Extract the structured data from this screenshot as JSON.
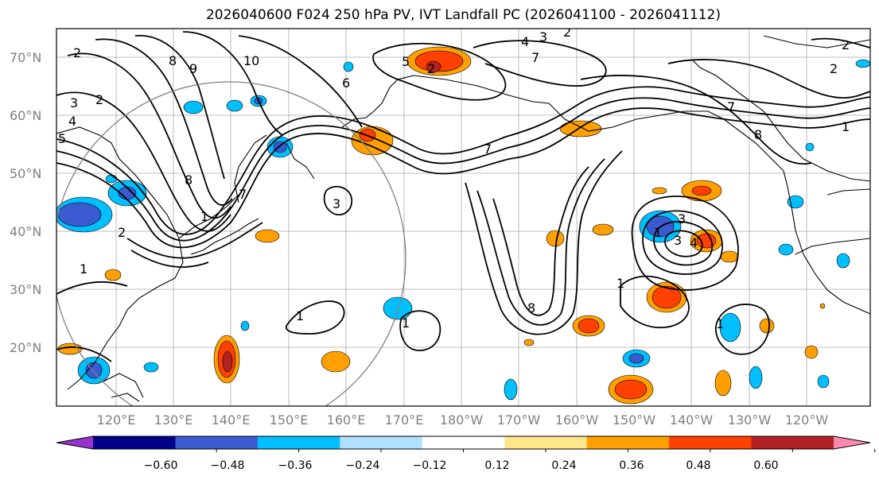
{
  "title": "2026040600 F024 250 hPa PV, IVT Landfall PC (2026041100 - 2026041112)",
  "map": {
    "lat_labels": [
      "70°N",
      "60°N",
      "50°N",
      "40°N",
      "30°N",
      "20°N"
    ],
    "lon_labels": [
      "120°E",
      "130°E",
      "140°E",
      "150°E",
      "160°E",
      "170°E",
      "180°W",
      "170°W",
      "160°W",
      "150°W",
      "140°W",
      "130°W",
      "120°W"
    ],
    "contour_labels": [
      "2",
      "3",
      "4",
      "5",
      "8",
      "9",
      "10",
      "6",
      "5",
      "2",
      "4",
      "3",
      "2",
      "7",
      "7",
      "7",
      "8",
      "3",
      "8",
      "7",
      "1",
      "1",
      "3",
      "1",
      "3",
      "4",
      "1",
      "8",
      "1",
      "1",
      "1",
      "1",
      "2",
      "2",
      "2",
      "2"
    ]
  },
  "colorbar": {
    "tick_labels": [
      "−0.60",
      "−0.48",
      "−0.36",
      "−0.24",
      "−0.12",
      "0.12",
      "0.24",
      "0.36",
      "0.48",
      "0.60"
    ],
    "colors": [
      "#9932cc",
      "#00008b",
      "#3a5bd0",
      "#00bfff",
      "#b0e0ff",
      "#ffffff",
      "#ffe68a",
      "#ffa000",
      "#ff4000",
      "#b22222",
      "#ff88b0"
    ]
  },
  "colors": {
    "land": "#000000",
    "grid": "#aaaaaa",
    "circle": "#808080"
  }
}
